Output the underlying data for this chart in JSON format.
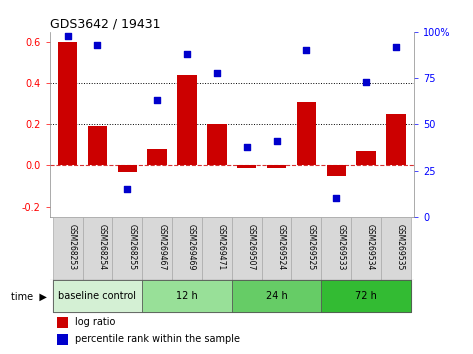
{
  "title": "GDS3642 / 19431",
  "categories": [
    "GSM268253",
    "GSM268254",
    "GSM268255",
    "GSM269467",
    "GSM269469",
    "GSM269471",
    "GSM269507",
    "GSM269524",
    "GSM269525",
    "GSM269533",
    "GSM269534",
    "GSM269535"
  ],
  "log_ratio": [
    0.6,
    0.19,
    -0.03,
    0.08,
    0.44,
    0.2,
    -0.01,
    -0.01,
    0.31,
    -0.05,
    0.07,
    0.25
  ],
  "percentile_rank": [
    98,
    93,
    15,
    63,
    88,
    78,
    38,
    41,
    90,
    10,
    73,
    92
  ],
  "bar_color": "#cc0000",
  "dot_color": "#0000cc",
  "ylim_left": [
    -0.25,
    0.65
  ],
  "ylim_right": [
    0,
    100
  ],
  "yticks_left": [
    -0.2,
    0.0,
    0.2,
    0.4,
    0.6
  ],
  "yticks_right": [
    0,
    25,
    50,
    75,
    100
  ],
  "ytick_labels_right": [
    "0",
    "25",
    "50",
    "75",
    "100%"
  ],
  "hlines": [
    0.2,
    0.4
  ],
  "groups": [
    {
      "label": "baseline control",
      "start": 0,
      "end": 3,
      "color": "#d4f0d4"
    },
    {
      "label": "12 h",
      "start": 3,
      "end": 6,
      "color": "#98e098"
    },
    {
      "label": "24 h",
      "start": 6,
      "end": 9,
      "color": "#66cc66"
    },
    {
      "label": "72 h",
      "start": 9,
      "end": 12,
      "color": "#33bb33"
    }
  ],
  "label_bg_color": "#d8d8d8",
  "label_border_color": "#aaaaaa"
}
